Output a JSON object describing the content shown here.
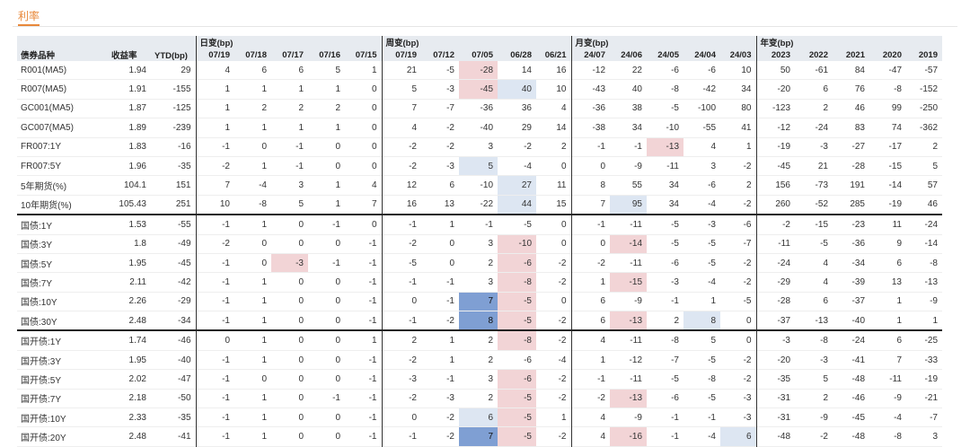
{
  "tab": {
    "label": "利率"
  },
  "header": {
    "col_name": "债券品种",
    "col_yield": "收益率",
    "col_ytd": "YTD(bp)",
    "groups": {
      "daily": "日变(bp)",
      "weekly": "周变(bp)",
      "monthly": "月变(bp)",
      "yearly": "年变(bp)"
    },
    "daily": [
      "07/19",
      "07/18",
      "07/17",
      "07/16",
      "07/15"
    ],
    "weekly": [
      "07/19",
      "07/12",
      "07/05",
      "06/28",
      "06/21"
    ],
    "monthly": [
      "24/07",
      "24/06",
      "24/05",
      "24/04",
      "24/03"
    ],
    "yearly": [
      "2023",
      "2022",
      "2021",
      "2020",
      "2019"
    ]
  },
  "colors": {
    "red": "#f2d4d6",
    "pale": "#dde6f2",
    "blue": "#7f9fd3",
    "accent": "#e8883a"
  },
  "rows": [
    {
      "name": "R001(MA5)",
      "yield": "1.94",
      "ytd": "29",
      "d": [
        "4",
        "6",
        "6",
        "5",
        "1"
      ],
      "w": [
        "21",
        "-5",
        "-28",
        "14",
        "16"
      ],
      "m": [
        "-12",
        "22",
        "-6",
        "-6",
        "10"
      ],
      "y": [
        "50",
        "-61",
        "84",
        "-47",
        "-57"
      ],
      "hl": {
        "w2": "red"
      }
    },
    {
      "name": "R007(MA5)",
      "yield": "1.91",
      "ytd": "-155",
      "d": [
        "1",
        "1",
        "1",
        "1",
        "0"
      ],
      "w": [
        "5",
        "-3",
        "-45",
        "40",
        "10"
      ],
      "m": [
        "-43",
        "40",
        "-8",
        "-42",
        "34"
      ],
      "y": [
        "-20",
        "6",
        "76",
        "-8",
        "-152"
      ],
      "hl": {
        "w2": "red",
        "w3": "pale"
      }
    },
    {
      "name": "GC001(MA5)",
      "yield": "1.87",
      "ytd": "-125",
      "d": [
        "1",
        "2",
        "2",
        "2",
        "0"
      ],
      "w": [
        "7",
        "-7",
        "-36",
        "36",
        "4"
      ],
      "m": [
        "-36",
        "38",
        "-5",
        "-100",
        "80"
      ],
      "y": [
        "-123",
        "2",
        "46",
        "99",
        "-250"
      ],
      "hl": {}
    },
    {
      "name": "GC007(MA5)",
      "yield": "1.89",
      "ytd": "-239",
      "d": [
        "1",
        "1",
        "1",
        "1",
        "0"
      ],
      "w": [
        "4",
        "-2",
        "-40",
        "29",
        "14"
      ],
      "m": [
        "-38",
        "34",
        "-10",
        "-55",
        "41"
      ],
      "y": [
        "-12",
        "-24",
        "83",
        "74",
        "-362"
      ],
      "hl": {}
    },
    {
      "name": "FR007:1Y",
      "yield": "1.83",
      "ytd": "-16",
      "d": [
        "-1",
        "0",
        "-1",
        "0",
        "0"
      ],
      "w": [
        "-2",
        "-2",
        "3",
        "-2",
        "2"
      ],
      "m": [
        "-1",
        "-1",
        "-13",
        "4",
        "1"
      ],
      "y": [
        "-19",
        "-3",
        "-27",
        "-17",
        "2"
      ],
      "hl": {
        "m2": "red"
      }
    },
    {
      "name": "FR007:5Y",
      "yield": "1.96",
      "ytd": "-35",
      "d": [
        "-2",
        "1",
        "-1",
        "0",
        "0"
      ],
      "w": [
        "-2",
        "-3",
        "5",
        "-4",
        "0"
      ],
      "m": [
        "0",
        "-9",
        "-11",
        "3",
        "-2"
      ],
      "y": [
        "-45",
        "21",
        "-28",
        "-15",
        "5"
      ],
      "hl": {
        "w2": "pale"
      }
    },
    {
      "name": "5年期货(%)",
      "yield": "104.1",
      "ytd": "151",
      "d": [
        "7",
        "-4",
        "3",
        "1",
        "4"
      ],
      "w": [
        "12",
        "6",
        "-10",
        "27",
        "11"
      ],
      "m": [
        "8",
        "55",
        "34",
        "-6",
        "2"
      ],
      "y": [
        "156",
        "-73",
        "191",
        "-14",
        "57"
      ],
      "hl": {
        "w3": "pale"
      }
    },
    {
      "name": "10年期货(%)",
      "yield": "105.43",
      "ytd": "251",
      "d": [
        "10",
        "-8",
        "5",
        "1",
        "7"
      ],
      "w": [
        "16",
        "13",
        "-22",
        "44",
        "15"
      ],
      "m": [
        "7",
        "95",
        "34",
        "-4",
        "-2"
      ],
      "y": [
        "260",
        "-52",
        "285",
        "-19",
        "46"
      ],
      "hl": {
        "w3": "pale",
        "m1": "pale"
      }
    },
    {
      "name": "国债:1Y",
      "yield": "1.53",
      "ytd": "-55",
      "d": [
        "-1",
        "1",
        "0",
        "-1",
        "0"
      ],
      "w": [
        "-1",
        "1",
        "-1",
        "-5",
        "0"
      ],
      "m": [
        "-1",
        "-11",
        "-5",
        "-3",
        "-6"
      ],
      "y": [
        "-2",
        "-15",
        "-23",
        "11",
        "-24"
      ],
      "hl": {},
      "sep": true
    },
    {
      "name": "国债:3Y",
      "yield": "1.8",
      "ytd": "-49",
      "d": [
        "-2",
        "0",
        "0",
        "0",
        "-1"
      ],
      "w": [
        "-2",
        "0",
        "3",
        "-10",
        "0"
      ],
      "m": [
        "0",
        "-14",
        "-5",
        "-5",
        "-7"
      ],
      "y": [
        "-11",
        "-5",
        "-36",
        "9",
        "-14"
      ],
      "hl": {
        "w3": "red",
        "m1": "red"
      }
    },
    {
      "name": "国债:5Y",
      "yield": "1.95",
      "ytd": "-45",
      "d": [
        "-1",
        "0",
        "-3",
        "-1",
        "-1"
      ],
      "w": [
        "-5",
        "0",
        "2",
        "-6",
        "-2"
      ],
      "m": [
        "-2",
        "-11",
        "-6",
        "-5",
        "-2"
      ],
      "y": [
        "-24",
        "4",
        "-34",
        "6",
        "-8"
      ],
      "hl": {
        "d2": "red",
        "w3": "red"
      }
    },
    {
      "name": "国债:7Y",
      "yield": "2.11",
      "ytd": "-42",
      "d": [
        "-1",
        "1",
        "0",
        "0",
        "-1"
      ],
      "w": [
        "-1",
        "-1",
        "3",
        "-8",
        "-2"
      ],
      "m": [
        "1",
        "-15",
        "-3",
        "-4",
        "-2"
      ],
      "y": [
        "-29",
        "4",
        "-39",
        "13",
        "-13"
      ],
      "hl": {
        "w3": "red",
        "m1": "red"
      }
    },
    {
      "name": "国债:10Y",
      "yield": "2.26",
      "ytd": "-29",
      "d": [
        "-1",
        "1",
        "0",
        "0",
        "-1"
      ],
      "w": [
        "0",
        "-1",
        "7",
        "-5",
        "0"
      ],
      "m": [
        "6",
        "-9",
        "-1",
        "1",
        "-5"
      ],
      "y": [
        "-28",
        "6",
        "-37",
        "1",
        "-9"
      ],
      "hl": {
        "w2": "blue",
        "w3": "red"
      }
    },
    {
      "name": "国债:30Y",
      "yield": "2.48",
      "ytd": "-34",
      "d": [
        "-1",
        "1",
        "0",
        "0",
        "-1"
      ],
      "w": [
        "-1",
        "-2",
        "8",
        "-5",
        "-2"
      ],
      "m": [
        "6",
        "-13",
        "2",
        "8",
        "0"
      ],
      "y": [
        "-37",
        "-13",
        "-40",
        "1",
        "1"
      ],
      "hl": {
        "w2": "blue",
        "w3": "red",
        "m1": "red",
        "m3": "pale"
      }
    },
    {
      "name": "国开债:1Y",
      "yield": "1.74",
      "ytd": "-46",
      "d": [
        "0",
        "1",
        "0",
        "0",
        "1"
      ],
      "w": [
        "2",
        "1",
        "2",
        "-8",
        "-2"
      ],
      "m": [
        "4",
        "-11",
        "-8",
        "5",
        "0"
      ],
      "y": [
        "-3",
        "-8",
        "-24",
        "6",
        "-25"
      ],
      "hl": {
        "w3": "red"
      },
      "sep": true
    },
    {
      "name": "国开债:3Y",
      "yield": "1.95",
      "ytd": "-40",
      "d": [
        "-1",
        "1",
        "0",
        "0",
        "-1"
      ],
      "w": [
        "-2",
        "1",
        "2",
        "-6",
        "-4"
      ],
      "m": [
        "1",
        "-12",
        "-7",
        "-5",
        "-2"
      ],
      "y": [
        "-20",
        "-3",
        "-41",
        "7",
        "-33"
      ],
      "hl": {}
    },
    {
      "name": "国开债:5Y",
      "yield": "2.02",
      "ytd": "-47",
      "d": [
        "-1",
        "0",
        "0",
        "0",
        "-1"
      ],
      "w": [
        "-3",
        "-1",
        "3",
        "-6",
        "-2"
      ],
      "m": [
        "-1",
        "-11",
        "-5",
        "-8",
        "-2"
      ],
      "y": [
        "-35",
        "5",
        "-48",
        "-11",
        "-19"
      ],
      "hl": {
        "w3": "red"
      }
    },
    {
      "name": "国开债:7Y",
      "yield": "2.18",
      "ytd": "-50",
      "d": [
        "-1",
        "1",
        "0",
        "-1",
        "-1"
      ],
      "w": [
        "-2",
        "-3",
        "2",
        "-5",
        "-2"
      ],
      "m": [
        "-2",
        "-13",
        "-6",
        "-5",
        "-3"
      ],
      "y": [
        "-31",
        "2",
        "-46",
        "-9",
        "-21"
      ],
      "hl": {
        "w3": "red",
        "m1": "red"
      }
    },
    {
      "name": "国开债:10Y",
      "yield": "2.33",
      "ytd": "-35",
      "d": [
        "-1",
        "1",
        "0",
        "0",
        "-1"
      ],
      "w": [
        "0",
        "-2",
        "6",
        "-5",
        "1"
      ],
      "m": [
        "4",
        "-9",
        "-1",
        "-1",
        "-3"
      ],
      "y": [
        "-31",
        "-9",
        "-45",
        "-4",
        "-7"
      ],
      "hl": {
        "w2": "pale",
        "w3": "red"
      }
    },
    {
      "name": "国开债:20Y",
      "yield": "2.48",
      "ytd": "-41",
      "d": [
        "-1",
        "1",
        "0",
        "0",
        "-1"
      ],
      "w": [
        "-1",
        "-2",
        "7",
        "-5",
        "-2"
      ],
      "m": [
        "4",
        "-16",
        "-1",
        "-4",
        "6"
      ],
      "y": [
        "-48",
        "-2",
        "-48",
        "-8",
        "3"
      ],
      "hl": {
        "w2": "blue",
        "w3": "red",
        "m1": "red",
        "m4": "pale"
      }
    }
  ]
}
